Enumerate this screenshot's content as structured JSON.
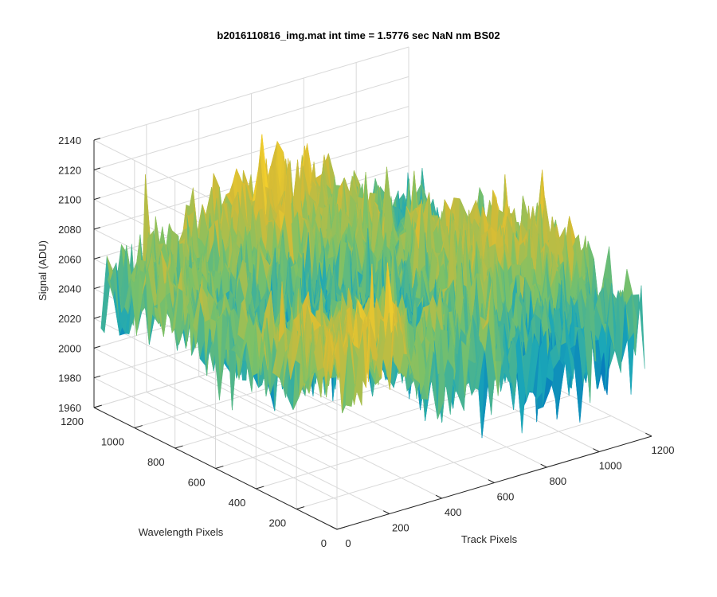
{
  "chart_data": {
    "type": "surface3d",
    "title": "b2016110816_img.mat int time = 1.5776 sec  NaN nm BS02",
    "xlabel": "Track Pixels",
    "ylabel": "Wavelength Pixels",
    "zlabel": "Signal (ADU)",
    "xlim": [
      0,
      1200
    ],
    "ylim": [
      0,
      1200
    ],
    "zlim": [
      1960,
      2140
    ],
    "x_ticks": [
      "0",
      "200",
      "400",
      "600",
      "800",
      "1000",
      "1200"
    ],
    "y_ticks": [
      "0",
      "200",
      "400",
      "600",
      "800",
      "1000",
      "1200"
    ],
    "z_ticks": [
      "1960",
      "1980",
      "2000",
      "2020",
      "2040",
      "2060",
      "2080",
      "2100",
      "2120",
      "2140"
    ],
    "grid": true,
    "colormap": "parula",
    "colormap_colors": [
      "#3e26a8",
      "#0072bd",
      "#1ba7b8",
      "#7bc168",
      "#d4bb36",
      "#f9d32a"
    ],
    "surface_summary": {
      "mean_signal_approx": 2045,
      "min_signal_approx": 1960,
      "max_signal_approx": 2130
    }
  }
}
